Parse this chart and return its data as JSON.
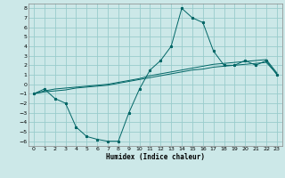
{
  "title": "",
  "xlabel": "Humidex (Indice chaleur)",
  "xlim": [
    -0.5,
    23.5
  ],
  "ylim": [
    -6.5,
    8.5
  ],
  "xticks": [
    0,
    1,
    2,
    3,
    4,
    5,
    6,
    7,
    8,
    9,
    10,
    11,
    12,
    13,
    14,
    15,
    16,
    17,
    18,
    19,
    20,
    21,
    22,
    23
  ],
  "yticks": [
    -6,
    -5,
    -4,
    -3,
    -2,
    -1,
    0,
    1,
    2,
    3,
    4,
    5,
    6,
    7,
    8
  ],
  "bg_color": "#cce8e8",
  "grid_color": "#99cccc",
  "line_color": "#006666",
  "line1_x": [
    0,
    1,
    2,
    3,
    4,
    5,
    6,
    7,
    8,
    9,
    10,
    11,
    12,
    13,
    14,
    15,
    16,
    17,
    18,
    19,
    20,
    21,
    22,
    23
  ],
  "line1_y": [
    -1.0,
    -0.5,
    -1.5,
    -2.0,
    -4.5,
    -5.5,
    -5.8,
    -6.0,
    -6.0,
    -3.0,
    -0.5,
    1.5,
    2.5,
    4.0,
    8.0,
    7.0,
    6.5,
    3.5,
    2.0,
    2.0,
    2.5,
    2.0,
    2.5,
    1.0
  ],
  "line2_x": [
    0,
    1,
    2,
    3,
    4,
    5,
    6,
    7,
    8,
    9,
    10,
    11,
    12,
    13,
    14,
    15,
    16,
    17,
    18,
    19,
    20,
    21,
    22,
    23
  ],
  "line2_y": [
    -1.0,
    -0.8,
    -0.7,
    -0.6,
    -0.4,
    -0.3,
    -0.2,
    -0.1,
    0.1,
    0.3,
    0.5,
    0.7,
    0.9,
    1.1,
    1.3,
    1.5,
    1.6,
    1.8,
    1.9,
    2.0,
    2.1,
    2.2,
    2.3,
    1.1
  ],
  "line3_x": [
    0,
    1,
    2,
    3,
    4,
    5,
    6,
    7,
    8,
    9,
    10,
    11,
    12,
    13,
    14,
    15,
    16,
    17,
    18,
    19,
    20,
    21,
    22,
    23
  ],
  "line3_y": [
    -1.0,
    -0.7,
    -0.5,
    -0.4,
    -0.3,
    -0.2,
    -0.1,
    0.0,
    0.2,
    0.4,
    0.6,
    0.9,
    1.1,
    1.3,
    1.5,
    1.7,
    1.9,
    2.1,
    2.2,
    2.3,
    2.4,
    2.5,
    2.6,
    1.2
  ]
}
